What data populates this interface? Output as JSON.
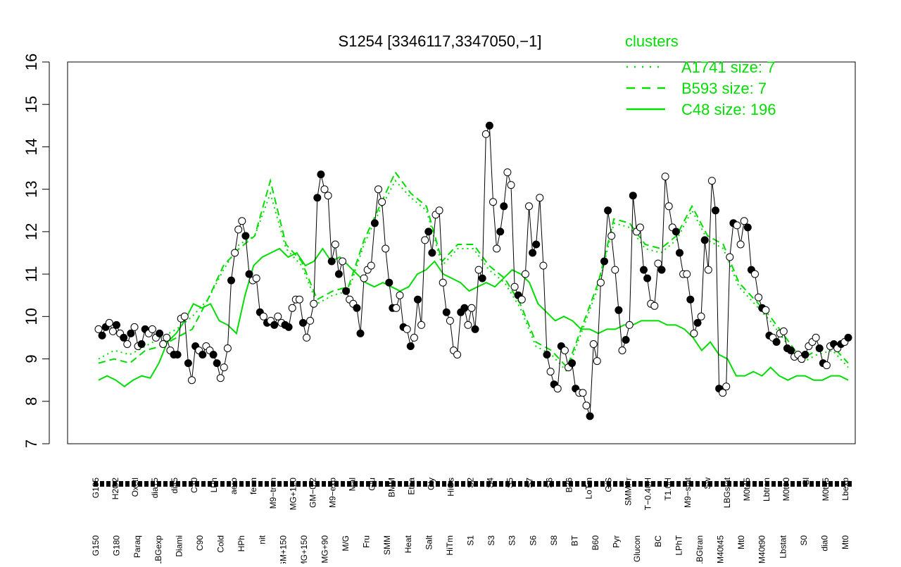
{
  "chart_data": {
    "type": "line",
    "title": "S1254 [3346117,3347050,−1]",
    "xlabel": "",
    "ylabel": "",
    "ylim": [
      7,
      16
    ],
    "yticks": [
      7,
      8,
      9,
      10,
      11,
      12,
      13,
      14,
      15,
      16
    ],
    "grid": false,
    "legend": {
      "title": "clusters",
      "placement": "top-right",
      "entries": [
        {
          "label": "A1741 size: 7",
          "style": "dotted"
        },
        {
          "label": "B593 size: 7",
          "style": "dashed"
        },
        {
          "label": "C48 size: 196",
          "style": "solid"
        }
      ]
    },
    "colors": {
      "clusters": "#00dd00",
      "points": "#000000",
      "axis": "#000000"
    },
    "x_tick_labels_top": [
      "G135",
      "H2O2",
      "Oxctl",
      "dia15",
      "dia5",
      "C30",
      "LPh",
      "aero",
      "ferm",
      "M9−tran",
      "MG+120",
      "GM−0.2",
      "M9−exp",
      "Mal",
      "Glu",
      "BMM",
      "Etha",
      "Gly",
      "HiOs",
      "S2",
      "S4",
      "S5",
      "S7",
      "S6",
      "B36",
      "LoTm",
      "G/S",
      "SMMPr",
      "T−0.40H",
      "T1.0H",
      "M9−stat",
      "Sw",
      "LBGstat",
      "M0t45",
      "Lbtran",
      "M0t90",
      "Bl",
      "M0t45",
      "Lbexp"
    ],
    "x_tick_labels_bottom": [
      "G150",
      "G180",
      "Paraq",
      "LBGexp",
      "Diami",
      "C90",
      "Cold",
      "HPh",
      "nit",
      "GM+150",
      "MG+150",
      "MG+90",
      "M/G",
      "Fru",
      "SMM",
      "Heat",
      "Salt",
      "HiTm",
      "S1",
      "S3",
      "S3",
      "S6",
      "S8",
      "BT",
      "B60",
      "Pyr",
      "Glucon",
      "BC",
      "LPhT",
      "LBGtran",
      "M40t45",
      "Mt0",
      "M40t90",
      "Lbstat",
      "S0",
      "dia0",
      "Mt0"
    ],
    "series": [
      {
        "style": "solid",
        "y": [
          8.5,
          8.6,
          8.5,
          8.35,
          8.5,
          8.6,
          8.55,
          8.9,
          9.4,
          9.6,
          9.9,
          10.3,
          10.2,
          10.3,
          9.9,
          9.8,
          9.6,
          10.5,
          11.2,
          11.4,
          11.5,
          11.6,
          11.4,
          11.5,
          11.2,
          11.3,
          11.6,
          11.3,
          11.4,
          11.2,
          11.0,
          10.8,
          10.7,
          10.8,
          10.7,
          10.6,
          10.7,
          11.0,
          11.1,
          11.3,
          11.0,
          10.9,
          10.8,
          10.6,
          10.7,
          10.8,
          10.7,
          10.9,
          11.1,
          11.0,
          10.8,
          10.3,
          10.1,
          9.9,
          10.0,
          9.9,
          9.7,
          9.7,
          9.6,
          9.7,
          9.7,
          9.8,
          9.8,
          9.9,
          9.9,
          9.9,
          9.8,
          9.8,
          9.7,
          9.5,
          9.2,
          9.4,
          9.1,
          9.0,
          8.6,
          8.6,
          8.7,
          8.6,
          8.8,
          8.6,
          8.5,
          8.6,
          8.6,
          8.5,
          8.5,
          8.6,
          8.6,
          8.5
        ]
      },
      {
        "style": "dashed",
        "y": [
          8.9,
          9.0,
          8.9,
          9.2,
          9.3,
          9.5,
          9.7,
          10.4,
          11.2,
          11.6,
          11.9,
          13.2,
          11.7,
          11.3,
          10.4,
          10.6,
          10.7,
          11.8,
          12.6,
          13.4,
          12.9,
          12.6,
          11.3,
          11.7,
          11.7,
          11.2,
          10.9,
          10.3,
          9.4,
          9.2,
          8.8,
          9.8,
          10.8,
          12.3,
          12.2,
          11.7,
          11.6,
          11.9,
          12.6,
          11.9,
          11.7,
          10.8,
          10.4,
          10.0,
          9.5,
          9.0,
          9.2,
          9.3,
          8.9
        ]
      },
      {
        "style": "dotted",
        "y": [
          9.0,
          9.2,
          9.1,
          9.3,
          9.5,
          9.7,
          10.0,
          10.4,
          11.1,
          11.7,
          11.9,
          12.9,
          11.6,
          11.2,
          10.3,
          10.5,
          10.6,
          11.7,
          12.5,
          13.2,
          12.8,
          12.5,
          11.2,
          11.6,
          11.6,
          11.1,
          10.8,
          10.2,
          9.3,
          9.1,
          8.7,
          9.7,
          10.7,
          12.2,
          12.1,
          11.6,
          11.5,
          11.8,
          12.5,
          11.8,
          11.6,
          10.7,
          10.3,
          9.9,
          9.4,
          8.9,
          9.1,
          9.2,
          8.8
        ]
      },
      {
        "style": "points",
        "y": [
          9.7,
          9.55,
          9.75,
          9.85,
          9.65,
          9.8,
          9.6,
          9.5,
          9.35,
          9.6,
          9.75,
          9.3,
          9.35,
          9.7,
          9.6,
          9.7,
          9.5,
          9.6,
          9.35,
          9.5,
          9.2,
          9.1,
          9.1,
          9.95,
          10.0,
          8.9,
          8.5,
          9.3,
          9.2,
          9.1,
          9.3,
          9.2,
          9.1,
          8.9,
          8.55,
          8.8,
          9.25,
          10.85,
          11.5,
          12.05,
          12.25,
          11.9,
          11.0,
          10.85,
          10.9,
          10.1,
          10.0,
          9.85,
          9.9,
          9.8,
          10.0,
          9.85,
          9.8,
          9.75,
          10.2,
          10.4,
          10.4,
          9.85,
          9.5,
          9.9,
          10.3,
          12.8,
          13.35,
          13.0,
          12.85,
          11.3,
          11.7,
          11.0,
          11.3,
          10.6,
          10.4,
          10.3,
          10.2,
          9.6,
          10.9,
          11.1,
          11.2,
          12.2,
          13.0,
          12.7,
          11.6,
          10.8,
          10.2,
          10.2,
          10.5,
          9.75,
          9.7,
          9.3,
          9.5,
          10.4,
          9.8,
          11.8,
          12.0,
          11.5,
          12.4,
          12.5,
          10.8,
          10.1,
          9.9,
          9.2,
          9.1,
          10.1,
          10.2,
          9.8,
          10.2,
          9.7,
          11.1,
          10.9,
          14.3,
          14.5,
          12.7,
          11.6,
          12.0,
          12.6,
          13.4,
          13.1,
          10.7,
          10.5,
          10.4,
          11.0,
          12.6,
          11.5,
          11.7,
          12.8,
          11.2,
          9.1,
          8.7,
          8.4,
          8.3,
          9.3,
          9.2,
          8.8,
          8.9,
          8.3,
          8.2,
          8.2,
          7.9,
          7.65,
          9.35,
          8.95,
          10.8,
          11.3,
          12.5,
          11.9,
          11.1,
          10.15,
          9.2,
          9.45,
          9.8,
          12.85,
          12.0,
          12.1,
          11.1,
          10.9,
          10.3,
          10.25,
          11.25,
          11.1,
          13.3,
          12.6,
          12.1,
          12.0,
          11.5,
          11.0,
          11.0,
          10.4,
          9.6,
          9.85,
          10.0,
          11.8,
          11.1,
          13.2,
          12.5,
          8.3,
          8.2,
          8.35,
          11.4,
          12.2,
          12.15,
          11.7,
          12.25,
          12.1,
          11.1,
          11.0,
          10.45,
          10.2,
          10.15,
          9.55,
          9.5,
          9.4,
          9.6,
          9.65,
          9.25,
          9.2,
          9.05,
          9.1,
          9.0,
          9.1,
          9.3,
          9.4,
          9.5,
          9.25,
          8.9,
          8.85,
          9.3,
          9.35,
          9.25,
          9.35,
          9.4,
          9.5
        ]
      }
    ]
  }
}
